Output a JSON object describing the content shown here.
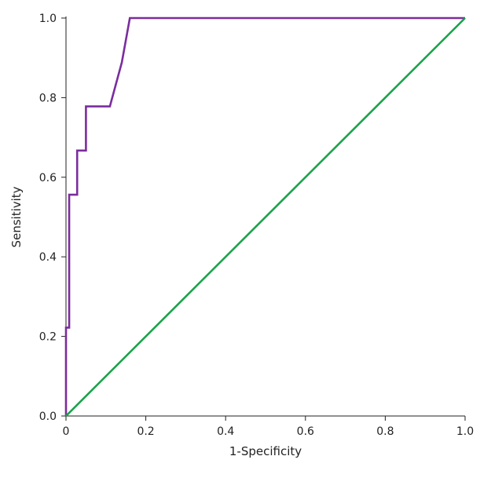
{
  "chart_data": {
    "type": "line",
    "title": "",
    "xlabel": "1-Specificity",
    "ylabel": "Sensitivity",
    "xlim": [
      0,
      1
    ],
    "ylim": [
      0,
      1
    ],
    "x_ticks": [
      "0",
      "0.2",
      "0.4",
      "0.6",
      "0.8",
      "1.0"
    ],
    "y_ticks": [
      "0.0",
      "0.2",
      "0.4",
      "0.6",
      "0.8",
      "1.0"
    ],
    "grid": false,
    "legend": "none",
    "series": [
      {
        "color": "#7b2d9e",
        "x": [
          0,
          0,
          0.008,
          0.008,
          0.028,
          0.028,
          0.05,
          0.05,
          0.11,
          0.14,
          0.16,
          1.0
        ],
        "y": [
          0,
          0.222,
          0.222,
          0.556,
          0.556,
          0.667,
          0.667,
          0.778,
          0.778,
          0.889,
          1.0,
          1.0
        ]
      },
      {
        "color": "#1aa34a",
        "x": [
          0,
          1
        ],
        "y": [
          0,
          1
        ]
      }
    ]
  }
}
